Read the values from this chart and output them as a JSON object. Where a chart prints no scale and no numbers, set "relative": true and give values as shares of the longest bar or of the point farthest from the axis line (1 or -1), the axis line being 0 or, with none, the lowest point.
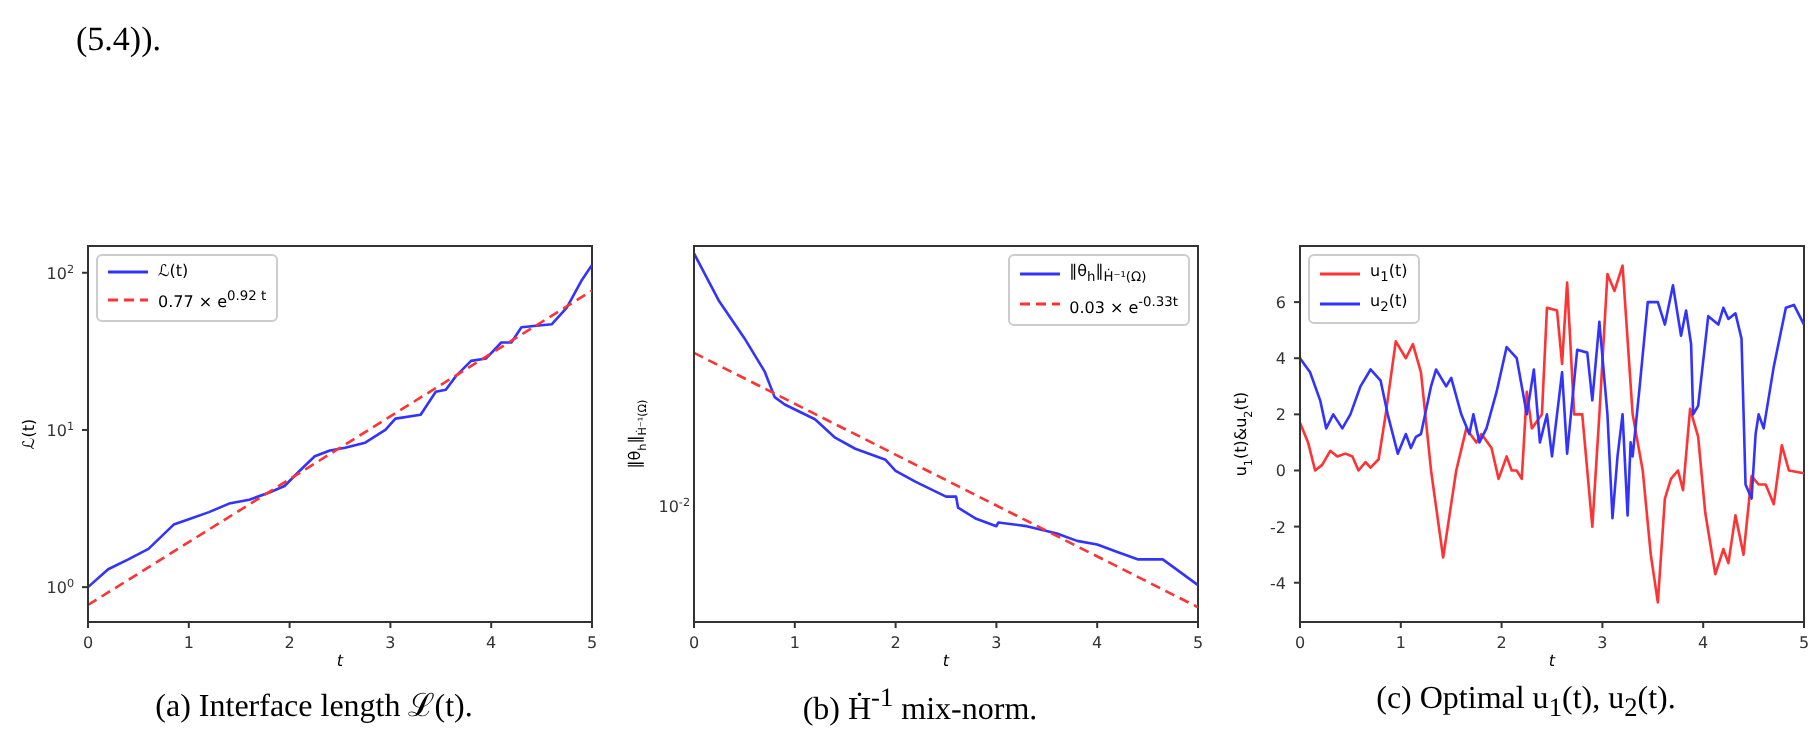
{
  "chart_data": [
    {
      "type": "line",
      "title": "(a) Interface length ℒ(t).",
      "annotations": [
        "(5.4))."
      ],
      "xlabel": "t",
      "ylabel": "ℒ(t)",
      "log": "y",
      "legend": "top left",
      "xlim": [
        0,
        5
      ],
      "xticks": [
        0,
        1,
        2,
        3,
        4,
        5
      ],
      "ylim": [
        0.6,
        148
      ],
      "yticks": [
        {
          "value": 1,
          "label": "10$^{0}$"
        },
        {
          "value": 10,
          "label": "10$^{1}$"
        },
        {
          "value": 100,
          "label": "10$^{2}$"
        }
      ],
      "series": [
        {
          "name": "ℒ(t)",
          "color": "#3333ff",
          "line_style": "solid",
          "x": [
            0,
            0.2,
            0.4,
            0.6,
            0.85,
            1.0,
            1.2,
            1.4,
            1.6,
            1.8,
            1.95,
            2.1,
            2.25,
            2.4,
            2.55,
            2.75,
            2.95,
            3.05,
            3.3,
            3.45,
            3.55,
            3.65,
            3.8,
            3.95,
            4.1,
            4.2,
            4.3,
            4.45,
            4.6,
            4.75,
            4.9,
            5.0
          ],
          "values": [
            1.0,
            1.3,
            1.5,
            1.75,
            2.5,
            2.7,
            3.0,
            3.4,
            3.6,
            4.0,
            4.4,
            5.5,
            6.8,
            7.4,
            7.7,
            8.3,
            10,
            11.8,
            12.5,
            17.5,
            18,
            22,
            27.5,
            28.5,
            36,
            36,
            45,
            46,
            47,
            60,
            90,
            112
          ]
        },
        {
          "name": "0.77 × e$^{0.92 t}$",
          "color": "#ff3333",
          "line_style": "dashed",
          "x": [
            0,
            5
          ],
          "values": [
            0.77,
            77
          ]
        }
      ]
    },
    {
      "type": "line",
      "title": "(b) Ḣ$^{-1}$ mix-norm.",
      "xlabel": "t",
      "ylabel": "‖θ$_{h}$‖$_{Ḣ⁻¹(Ω)}$",
      "annotations": [
        "10$^{-2}$"
      ],
      "relative": true,
      "legend": "top right",
      "xlim": [
        0,
        5
      ],
      "xticks": [
        0,
        1,
        2,
        3,
        4,
        5
      ],
      "series": [
        {
          "name": "‖θ$_{h}$‖$_{Ḣ⁻¹(Ω)}$",
          "color": "#3333ff",
          "line_style": "solid",
          "x": [
            0,
            0.25,
            0.5,
            0.7,
            0.8,
            0.9,
            1.2,
            1.4,
            1.6,
            1.9,
            2.0,
            2.2,
            2.5,
            2.6,
            2.62,
            2.8,
            3.0,
            3.02,
            3.3,
            3.6,
            3.8,
            4.0,
            4.2,
            4.4,
            4.65,
            4.8,
            5.0
          ],
          "values": [
            1,
            0.87,
            0.77,
            0.68,
            0.61,
            0.59,
            0.55,
            0.5,
            0.47,
            0.44,
            0.41,
            0.38,
            0.34,
            0.34,
            0.31,
            0.28,
            0.26,
            0.27,
            0.26,
            0.24,
            0.22,
            0.21,
            0.19,
            0.17,
            0.17,
            0.14,
            0.1
          ]
        },
        {
          "name": "0.03 × e$^{-0.33t}$",
          "color": "#ff3333",
          "line_style": "dashed",
          "x": [
            0,
            5
          ],
          "values": [
            0.73,
            0.04
          ]
        }
      ]
    },
    {
      "type": "line",
      "title": "(c) Optimal u$_{1}$(t), u$_{2}$(t).",
      "xlabel": "t",
      "ylabel": "u$_{1}$(t)&u$_{2}$(t)",
      "legend": "top left",
      "xlim": [
        0,
        5
      ],
      "xticks": [
        0,
        1,
        2,
        3,
        4,
        5
      ],
      "ylim": [
        -5.4,
        8
      ],
      "yticks": [
        -4,
        -2,
        0,
        2,
        4,
        6
      ],
      "series": [
        {
          "name": "u$_{1}$(t)",
          "color": "#ff3333",
          "line_style": "solid",
          "x": [
            0,
            0.08,
            0.15,
            0.22,
            0.3,
            0.37,
            0.45,
            0.52,
            0.58,
            0.65,
            0.7,
            0.78,
            0.85,
            0.95,
            1.05,
            1.12,
            1.2,
            1.3,
            1.42,
            1.55,
            1.65,
            1.75,
            1.8,
            1.9,
            1.97,
            2.05,
            2.1,
            2.15,
            2.2,
            2.25,
            2.3,
            2.4,
            2.45,
            2.55,
            2.6,
            2.65,
            2.72,
            2.8,
            2.9,
            2.97,
            3.05,
            3.12,
            3.2,
            3.3,
            3.4,
            3.48,
            3.55,
            3.62,
            3.68,
            3.75,
            3.8,
            3.87,
            3.95,
            4.02,
            4.12,
            4.2,
            4.25,
            4.32,
            4.4,
            4.48,
            4.55,
            4.62,
            4.7,
            4.78,
            4.85,
            5.0
          ],
          "values": [
            1.7,
            1.0,
            0.0,
            0.2,
            0.7,
            0.5,
            0.6,
            0.5,
            0.0,
            0.3,
            0.1,
            0.4,
            2.0,
            4.6,
            4.0,
            4.5,
            3.5,
            0.0,
            -3.1,
            0.0,
            1.5,
            1.0,
            1.3,
            0.8,
            -0.3,
            0.5,
            0.0,
            0.0,
            -0.3,
            2.8,
            1.5,
            2.0,
            5.8,
            5.7,
            3.8,
            6.7,
            2.0,
            2.0,
            -2.0,
            2.0,
            7.0,
            6.4,
            7.3,
            2.0,
            0.0,
            -3.0,
            -4.7,
            -1.0,
            -0.3,
            0.0,
            -0.7,
            2.2,
            1.2,
            -1.5,
            -3.7,
            -2.8,
            -3.3,
            -1.6,
            -3.0,
            -0.2,
            -0.5,
            -0.5,
            -1.2,
            0.9,
            0.0,
            -0.1
          ]
        },
        {
          "name": "u$_{2}$(t)",
          "color": "#3333ff",
          "line_style": "solid",
          "x": [
            0,
            0.1,
            0.2,
            0.26,
            0.33,
            0.42,
            0.5,
            0.6,
            0.7,
            0.8,
            0.87,
            0.97,
            1.05,
            1.1,
            1.15,
            1.2,
            1.3,
            1.35,
            1.45,
            1.5,
            1.6,
            1.68,
            1.72,
            1.78,
            1.85,
            1.95,
            2.05,
            2.15,
            2.25,
            2.32,
            2.38,
            2.45,
            2.5,
            2.55,
            2.6,
            2.65,
            2.75,
            2.85,
            2.9,
            2.97,
            3.05,
            3.1,
            3.15,
            3.2,
            3.25,
            3.28,
            3.3,
            3.37,
            3.45,
            3.55,
            3.62,
            3.7,
            3.78,
            3.83,
            3.88,
            3.9,
            3.95,
            4.05,
            4.15,
            4.2,
            4.25,
            4.32,
            4.38,
            4.42,
            4.48,
            4.52,
            4.55,
            4.6,
            4.7,
            4.82,
            4.9,
            5.0
          ],
          "values": [
            4.0,
            3.5,
            2.5,
            1.5,
            2.0,
            1.5,
            2.0,
            3.0,
            3.6,
            3.2,
            2.0,
            0.6,
            1.3,
            0.8,
            1.2,
            1.3,
            3.0,
            3.6,
            3.0,
            3.3,
            2.0,
            1.3,
            2.0,
            1.0,
            1.5,
            2.8,
            4.4,
            4.0,
            2.0,
            3.6,
            1.0,
            2.0,
            0.5,
            2.0,
            3.5,
            0.6,
            4.3,
            4.2,
            2.5,
            5.3,
            2.0,
            -1.7,
            0.5,
            2.0,
            -1.6,
            1.0,
            0.5,
            3.0,
            6.0,
            6.0,
            5.2,
            6.6,
            4.8,
            5.7,
            4.5,
            2.0,
            2.3,
            5.5,
            5.2,
            5.8,
            5.4,
            5.6,
            4.7,
            -0.5,
            -1.0,
            1.3,
            2.0,
            1.5,
            3.7,
            5.8,
            5.9,
            5.2
          ]
        }
      ]
    }
  ]
}
